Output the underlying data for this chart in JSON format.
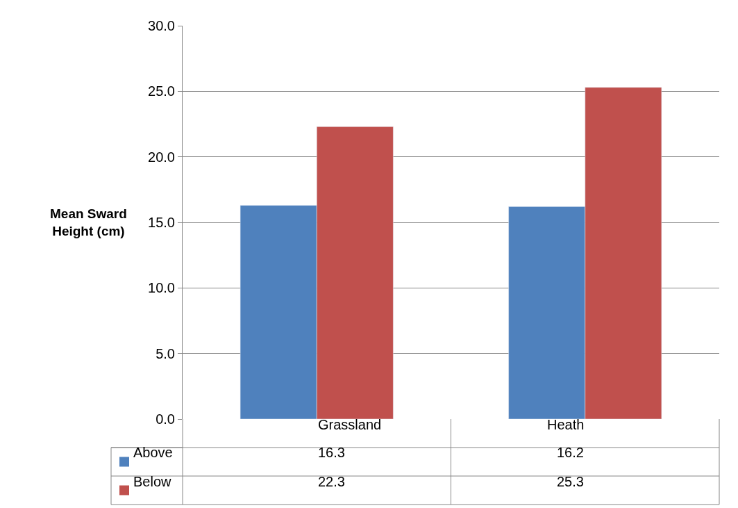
{
  "chart_data": {
    "type": "bar",
    "ylabel": "Mean Sward Height (cm)",
    "categories": [
      "Grassland",
      "Heath"
    ],
    "series": [
      {
        "name": "Above",
        "color": "#4f81bd",
        "values": [
          16.3,
          16.2
        ]
      },
      {
        "name": "Below",
        "color": "#c0504d",
        "values": [
          22.3,
          25.3
        ]
      }
    ],
    "ylim": [
      0,
      30
    ],
    "yticks": [
      {
        "value": 0,
        "label": "0.0"
      },
      {
        "value": 5,
        "label": "5.0"
      },
      {
        "value": 10,
        "label": "10.0"
      },
      {
        "value": 15,
        "label": "15.0"
      },
      {
        "value": 20,
        "label": "20.0"
      },
      {
        "value": 25,
        "label": "25.0"
      },
      {
        "value": 30,
        "label": "30.0"
      }
    ],
    "grid": "y",
    "legend": "bottom",
    "data_labels": true
  }
}
